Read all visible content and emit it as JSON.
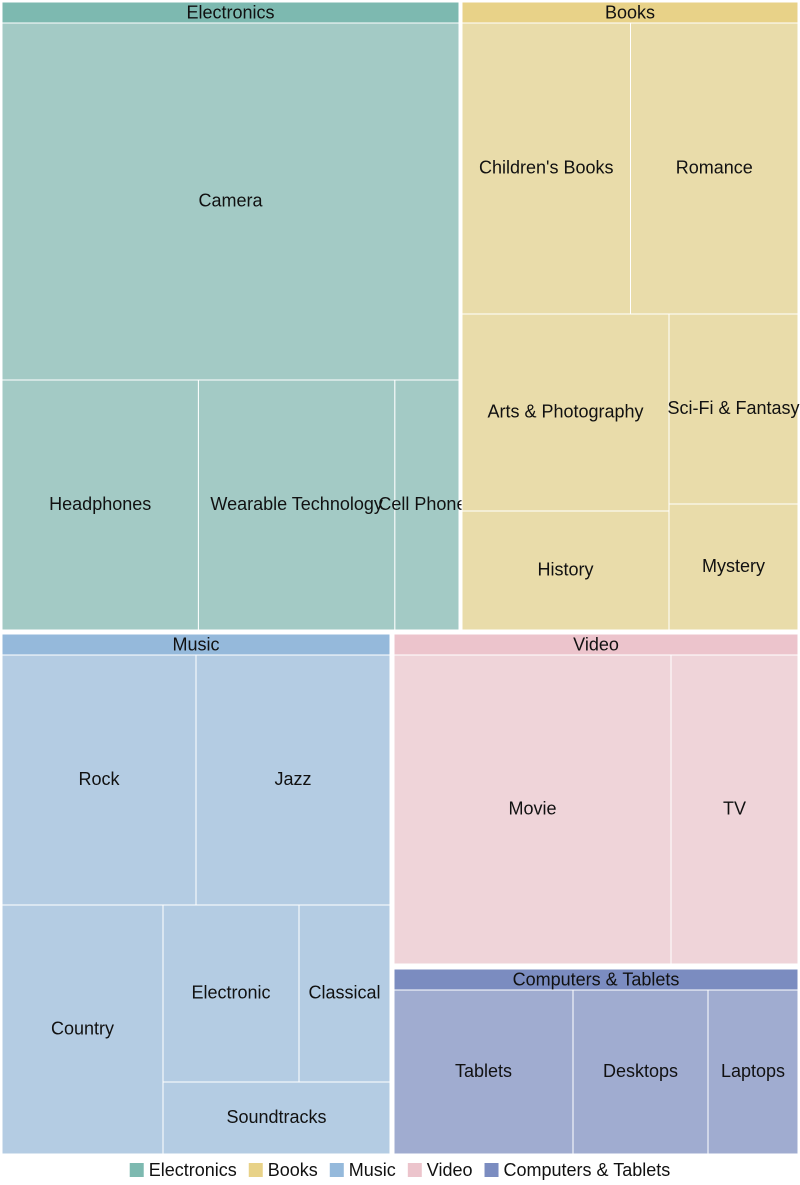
{
  "chart_data": {
    "type": "treemap",
    "legend_position": "bottom",
    "groups": [
      {
        "name": "Electronics",
        "color": "#7db9b0",
        "tile_color": "#a3cac5",
        "items": [
          {
            "name": "Camera",
            "value": 1500
          },
          {
            "name": "Headphones",
            "value": 490
          },
          {
            "name": "Wearable Technology",
            "value": 490
          },
          {
            "name": "Cell Phones",
            "value": 160
          }
        ]
      },
      {
        "name": "Books",
        "color": "#e8d288",
        "tile_color": "#e9dcaa",
        "items": [
          {
            "name": "Children's Books",
            "value": 490
          },
          {
            "name": "Romance",
            "value": 490
          },
          {
            "name": "Arts & Photography",
            "value": 410
          },
          {
            "name": "Sci-Fi & Fantasy",
            "value": 250
          },
          {
            "name": "History",
            "value": 250
          },
          {
            "name": "Mystery",
            "value": 160
          }
        ]
      },
      {
        "name": "Music",
        "color": "#95b9db",
        "tile_color": "#b4cce3",
        "items": [
          {
            "name": "Rock",
            "value": 490
          },
          {
            "name": "Jazz",
            "value": 490
          },
          {
            "name": "Country",
            "value": 410
          },
          {
            "name": "Electronic",
            "value": 250
          },
          {
            "name": "Classical",
            "value": 160
          },
          {
            "name": "Soundtracks",
            "value": 160
          }
        ]
      },
      {
        "name": "Video",
        "color": "#ecc4cc",
        "tile_color": "#efd4d9",
        "items": [
          {
            "name": "Movie",
            "value": 1000
          },
          {
            "name": "TV",
            "value": 490
          }
        ]
      },
      {
        "name": "Computers & Tablets",
        "color": "#7b8cc0",
        "tile_color": "#a0acd0",
        "items": [
          {
            "name": "Tablets",
            "value": 300
          },
          {
            "name": "Desktops",
            "value": 250
          },
          {
            "name": "Laptops",
            "value": 160
          }
        ]
      }
    ]
  }
}
